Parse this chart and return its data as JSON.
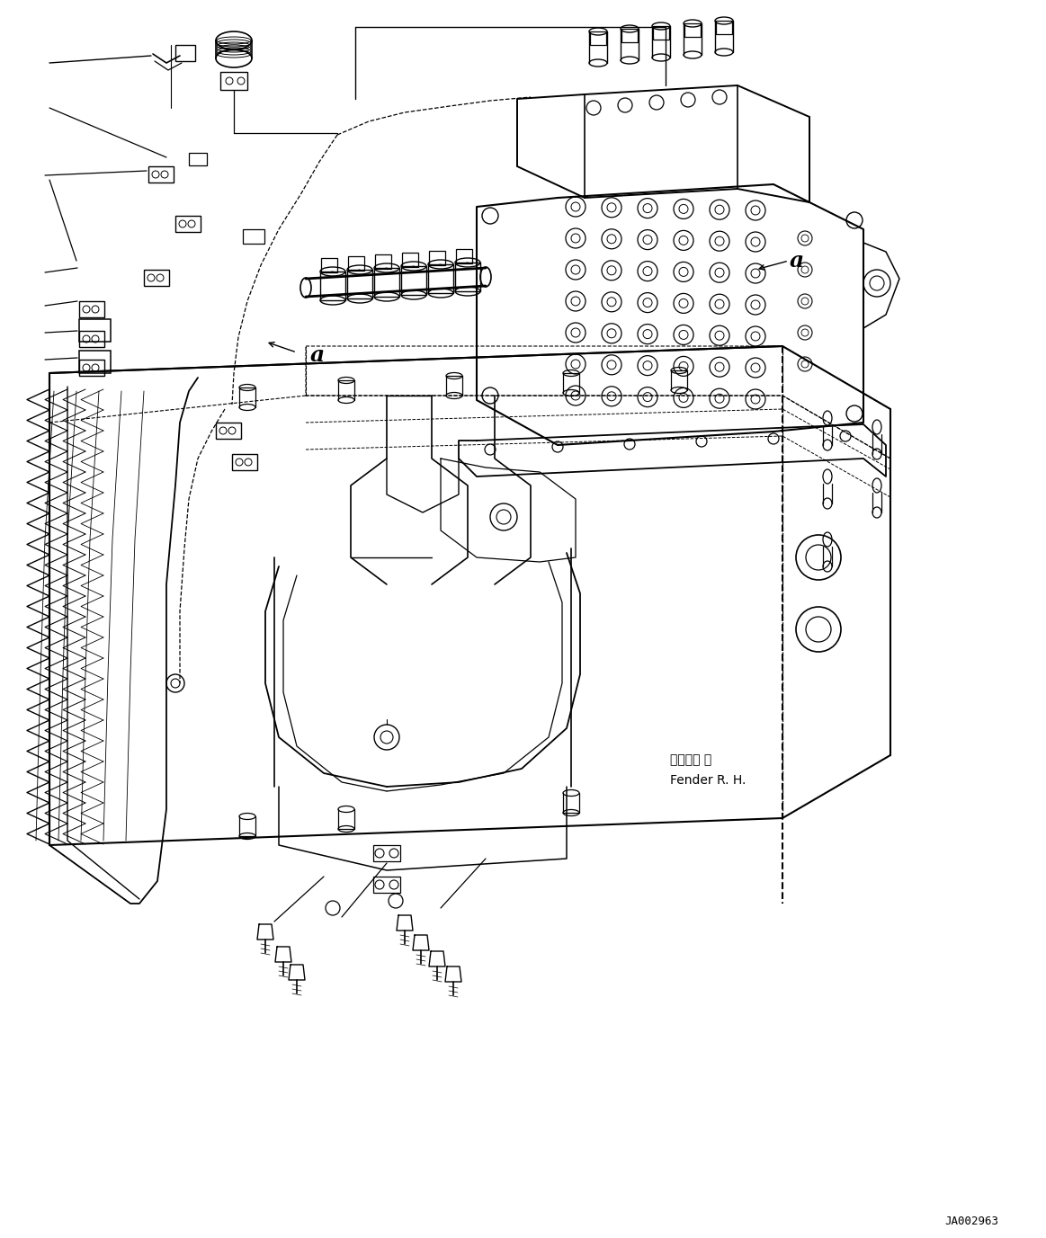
{
  "bg_color": "#ffffff",
  "line_color": "#000000",
  "fender_label_jp": "フェンダ 右",
  "fender_label_en": "Fender R. H.",
  "doc_number": "JA002963",
  "title_fontsize": 8,
  "doc_fontsize": 8
}
